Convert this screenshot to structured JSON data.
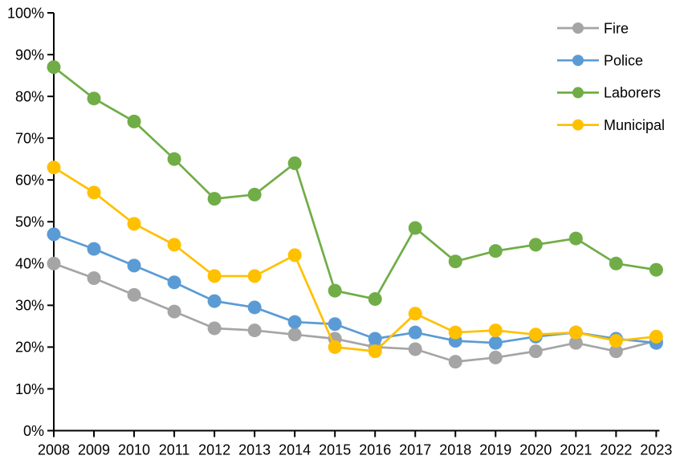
{
  "chart_data": {
    "type": "line",
    "title": "",
    "xlabel": "",
    "ylabel": "",
    "x": [
      2008,
      2009,
      2010,
      2011,
      2012,
      2013,
      2014,
      2015,
      2016,
      2017,
      2018,
      2019,
      2020,
      2021,
      2022,
      2023
    ],
    "x_tick_labels": [
      "2008",
      "2009",
      "2010",
      "2011",
      "2012",
      "2013",
      "2014",
      "2015",
      "2016",
      "2017",
      "2018",
      "2019",
      "2020",
      "2021",
      "2022",
      "2023"
    ],
    "ylim": [
      0,
      100
    ],
    "y_tick_step": 10,
    "y_tick_labels": [
      "0%",
      "10%",
      "20%",
      "30%",
      "40%",
      "50%",
      "60%",
      "70%",
      "80%",
      "90%",
      "100%"
    ],
    "grid": false,
    "legend_position": "top-right",
    "axis_color": "#000000",
    "background_color": "#ffffff",
    "series": [
      {
        "name": "Fire",
        "color": "#A5A5A5",
        "values": [
          40,
          36.5,
          32.5,
          28.5,
          24.5,
          24,
          23,
          22,
          20,
          19.5,
          16.5,
          17.5,
          19,
          21,
          19,
          21.5
        ]
      },
      {
        "name": "Police",
        "color": "#5B9BD5",
        "values": [
          47,
          43.5,
          39.5,
          35.5,
          31,
          29.5,
          26,
          25.5,
          22,
          23.5,
          21.5,
          21,
          22.5,
          23.5,
          22,
          21
        ]
      },
      {
        "name": "Laborers",
        "color": "#70AD47",
        "values": [
          87,
          79.5,
          74,
          65,
          55.5,
          56.5,
          64,
          33.5,
          31.5,
          48.5,
          40.5,
          43,
          44.5,
          46,
          40,
          38.5
        ]
      },
      {
        "name": "Municipal",
        "color": "#FFC000",
        "values": [
          63,
          57,
          49.5,
          44.5,
          37,
          37,
          42,
          20,
          19,
          28,
          23.5,
          24,
          23,
          23.5,
          21.5,
          22.5
        ]
      }
    ]
  }
}
